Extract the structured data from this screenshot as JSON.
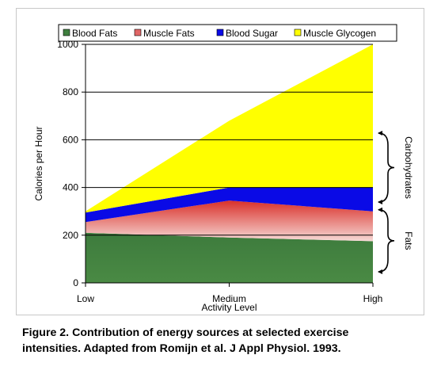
{
  "chart_data": {
    "type": "area",
    "stacked": true,
    "categories": [
      "Low",
      "Medium",
      "High"
    ],
    "xlabel": "Activity Level",
    "ylabel": "Calories per Hour",
    "ylim": [
      0,
      1000
    ],
    "yticks": [
      0,
      200,
      400,
      600,
      800,
      1000
    ],
    "grid": true,
    "legend_position": "top",
    "series": [
      {
        "name": "Blood Fats",
        "values": [
          210,
          190,
          175
        ],
        "color": "#3f7f3f"
      },
      {
        "name": "Muscle Fats",
        "values": [
          45,
          155,
          125
        ],
        "color": "#e06666"
      },
      {
        "name": "Blood Sugar",
        "values": [
          40,
          55,
          100
        ],
        "color": "#0a0ae6"
      },
      {
        "name": "Muscle Glycogen",
        "values": [
          5,
          280,
          600
        ],
        "color": "#ffff00"
      }
    ],
    "annotations": [
      {
        "text": "Carbohydrates",
        "range": [
          300,
          1000
        ]
      },
      {
        "text": "Fats",
        "range": [
          0,
          300
        ]
      }
    ]
  },
  "caption": {
    "line1": "Figure 2. Contribution of energy sources at selected exercise",
    "line2": "intensities. Adapted from Romijn et al. J Appl Physiol. 1993."
  }
}
